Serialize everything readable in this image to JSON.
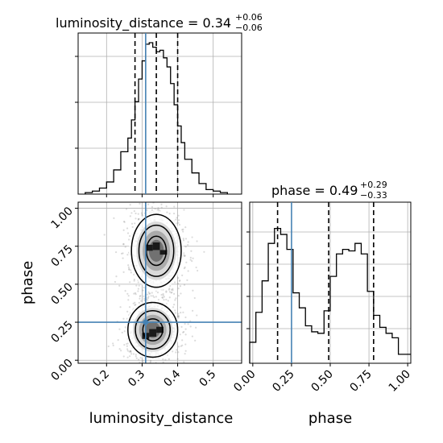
{
  "chart_data": {
    "type": "corner",
    "parameters": [
      "luminosity_distance",
      "phase"
    ],
    "truths": {
      "luminosity_distance": 0.31,
      "phase": 0.25
    },
    "titles": {
      "luminosity_distance": {
        "label": "luminosity_distance",
        "value": "0.34",
        "plus": "+0.06",
        "minus": "−0.06"
      },
      "phase": {
        "label": "phase",
        "value": "0.49",
        "plus": "+0.29",
        "minus": "−0.33"
      }
    },
    "axis_labels": {
      "x_left": "luminosity_distance",
      "y_left": "phase",
      "x_right": "phase"
    },
    "luminosity_distance_ticks": [
      "0.2",
      "0.3",
      "0.4",
      "0.5"
    ],
    "phase_ticks": [
      "0.00",
      "0.25",
      "0.50",
      "0.75",
      "1.00"
    ],
    "luminosity_distance_hist": {
      "range": [
        0.12,
        0.58
      ],
      "quantiles": [
        0.28,
        0.34,
        0.4
      ],
      "bin_edges": [
        0.14,
        0.16,
        0.18,
        0.2,
        0.22,
        0.24,
        0.26,
        0.27,
        0.28,
        0.29,
        0.3,
        0.31,
        0.32,
        0.33,
        0.34,
        0.35,
        0.36,
        0.37,
        0.38,
        0.39,
        0.4,
        0.41,
        0.42,
        0.44,
        0.46,
        0.48,
        0.5,
        0.52,
        0.54
      ],
      "counts": [
        0.01,
        0.02,
        0.04,
        0.08,
        0.16,
        0.28,
        0.37,
        0.49,
        0.61,
        0.76,
        0.88,
        0.99,
        1.0,
        0.97,
        0.94,
        0.95,
        0.9,
        0.84,
        0.73,
        0.59,
        0.45,
        0.34,
        0.23,
        0.14,
        0.07,
        0.03,
        0.02,
        0.01
      ]
    },
    "phase_hist": {
      "range": [
        -0.02,
        1.02
      ],
      "quantiles": [
        0.16,
        0.49,
        0.78
      ],
      "bin_edges": [
        -0.02,
        0.02,
        0.06,
        0.1,
        0.14,
        0.18,
        0.22,
        0.26,
        0.3,
        0.34,
        0.38,
        0.42,
        0.46,
        0.5,
        0.54,
        0.58,
        0.62,
        0.66,
        0.7,
        0.74,
        0.78,
        0.82,
        0.86,
        0.9,
        0.94,
        0.98,
        1.02
      ],
      "counts": [
        0.14,
        0.34,
        0.55,
        0.8,
        0.9,
        0.86,
        0.76,
        0.47,
        0.37,
        0.25,
        0.21,
        0.2,
        0.35,
        0.58,
        0.73,
        0.76,
        0.75,
        0.8,
        0.73,
        0.48,
        0.32,
        0.24,
        0.2,
        0.17,
        0.06,
        0.06
      ]
    },
    "scatter_2d": {
      "x_range": [
        0.12,
        0.58
      ],
      "y_range": [
        -0.02,
        1.04
      ],
      "modes": [
        {
          "x": 0.34,
          "y": 0.72,
          "sx": 0.035,
          "sy": 0.12
        },
        {
          "x": 0.33,
          "y": 0.2,
          "sx": 0.035,
          "sy": 0.09
        }
      ],
      "heat_cells": [
        {
          "x": 0.34,
          "y": 0.75,
          "w": 0.02,
          "h": 0.05
        },
        {
          "x": 0.36,
          "y": 0.71,
          "w": 0.02,
          "h": 0.03
        },
        {
          "x": 0.32,
          "y": 0.74,
          "w": 0.02,
          "h": 0.04
        },
        {
          "x": 0.33,
          "y": 0.18,
          "w": 0.02,
          "h": 0.05
        },
        {
          "x": 0.35,
          "y": 0.2,
          "w": 0.02,
          "h": 0.04
        },
        {
          "x": 0.31,
          "y": 0.16,
          "w": 0.02,
          "h": 0.04
        }
      ]
    },
    "colors": {
      "truth": "#4682b4",
      "hist": "#000000",
      "grid": "#b0b0b0",
      "point": "#7f7f7f"
    }
  }
}
